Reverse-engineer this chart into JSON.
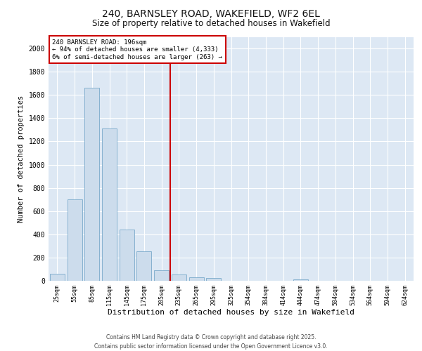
{
  "title_line1": "240, BARNSLEY ROAD, WAKEFIELD, WF2 6EL",
  "title_line2": "Size of property relative to detached houses in Wakefield",
  "xlabel": "Distribution of detached houses by size in Wakefield",
  "ylabel": "Number of detached properties",
  "bar_color": "#ccdcec",
  "bar_edge_color": "#7aaaca",
  "background_color": "#dde8f4",
  "grid_color": "#ffffff",
  "vline_color": "#cc0000",
  "annotation_text": "240 BARNSLEY ROAD: 196sqm\n← 94% of detached houses are smaller (4,333)\n6% of semi-detached houses are larger (263) →",
  "annotation_box_color": "#ffffff",
  "annotation_box_edge": "#cc0000",
  "footer_line1": "Contains HM Land Registry data © Crown copyright and database right 2025.",
  "footer_line2": "Contains public sector information licensed under the Open Government Licence v3.0.",
  "categories": [
    "25sqm",
    "55sqm",
    "85sqm",
    "115sqm",
    "145sqm",
    "175sqm",
    "205sqm",
    "235sqm",
    "265sqm",
    "295sqm",
    "325sqm",
    "354sqm",
    "384sqm",
    "414sqm",
    "444sqm",
    "474sqm",
    "504sqm",
    "534sqm",
    "564sqm",
    "594sqm",
    "624sqm"
  ],
  "values": [
    60,
    700,
    1660,
    1310,
    440,
    255,
    90,
    55,
    30,
    22,
    0,
    0,
    0,
    0,
    13,
    0,
    0,
    0,
    0,
    0,
    0
  ],
  "ylim": [
    0,
    2100
  ],
  "yticks": [
    0,
    200,
    400,
    600,
    800,
    1000,
    1200,
    1400,
    1600,
    1800,
    2000
  ],
  "vline_pos": 6.5
}
